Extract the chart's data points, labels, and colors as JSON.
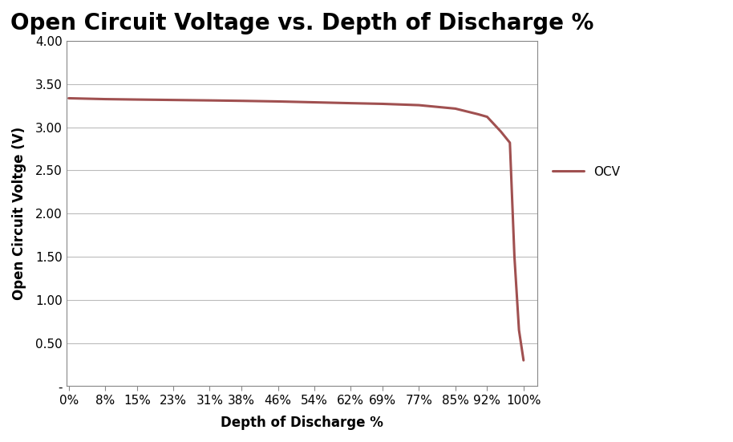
{
  "title": "Open Circuit Voltage vs. Depth of Discharge %",
  "xlabel": "Depth of Discharge %",
  "ylabel": "Open Circuit Voltge (V)",
  "line_color": "#a05050",
  "line_width": 2.2,
  "legend_label": "OCV",
  "ylim": [
    0,
    4.0
  ],
  "yticks": [
    0,
    0.5,
    1.0,
    1.5,
    2.0,
    2.5,
    3.0,
    3.5,
    4.0
  ],
  "ytick_labels": [
    "-",
    "0.50",
    "1.00",
    "1.50",
    "2.00",
    "2.50",
    "3.00",
    "3.50",
    "4.00"
  ],
  "xtick_labels": [
    "0%",
    "8%",
    "15%",
    "23%",
    "31%",
    "38%",
    "46%",
    "54%",
    "62%",
    "69%",
    "77%",
    "85%",
    "92%",
    "100%"
  ],
  "xtick_pos": [
    0,
    0.08,
    0.15,
    0.23,
    0.31,
    0.38,
    0.46,
    0.54,
    0.62,
    0.69,
    0.77,
    0.85,
    0.92,
    1.0
  ],
  "x": [
    0,
    0.08,
    0.15,
    0.23,
    0.31,
    0.38,
    0.46,
    0.54,
    0.62,
    0.69,
    0.77,
    0.85,
    0.9,
    0.92,
    0.95,
    0.97,
    0.98,
    0.99,
    1.0
  ],
  "y": [
    3.335,
    3.325,
    3.32,
    3.315,
    3.31,
    3.305,
    3.298,
    3.288,
    3.278,
    3.27,
    3.255,
    3.215,
    3.15,
    3.12,
    2.95,
    2.82,
    1.5,
    0.65,
    0.3
  ],
  "xlim": [
    -0.005,
    1.03
  ],
  "background_color": "#ffffff",
  "grid_color": "#bbbbbb",
  "spine_color": "#888888",
  "title_fontsize": 20,
  "axis_label_fontsize": 12,
  "tick_fontsize": 11
}
